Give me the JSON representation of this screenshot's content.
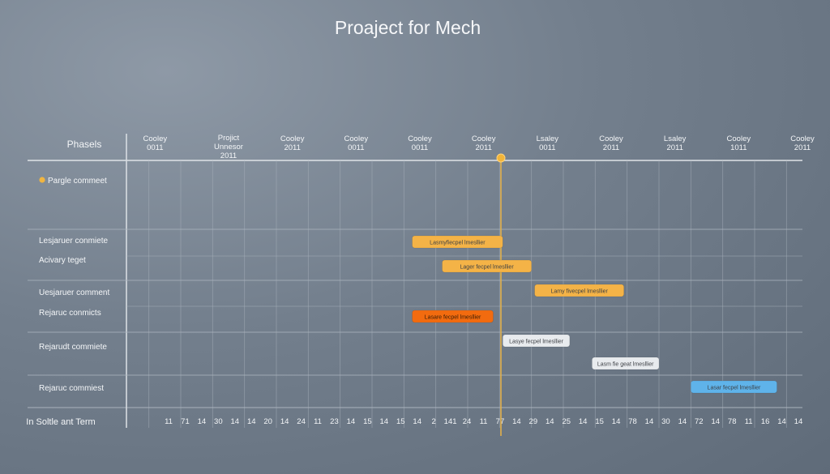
{
  "chart_data": {
    "type": "gantt",
    "title": "Proaject for Mech",
    "phase_header": "Phasels",
    "footer_label": "In Soltle ant Term",
    "today_column": 6,
    "column_headers": [
      [
        "Cooley",
        "0011"
      ],
      [
        "Projict",
        "Unnesor",
        "2011"
      ],
      [
        "Cooley",
        "2011"
      ],
      [
        "Cooley",
        "0011"
      ],
      [
        "Cooley",
        "0011"
      ],
      [
        "Cooley",
        "2011"
      ],
      [
        "Lsaley",
        "0011"
      ],
      [
        "Cooley",
        "2011"
      ],
      [
        "Lsaley",
        "2011"
      ],
      [
        "Cooley",
        "1011"
      ],
      [
        "Cooley",
        "2011"
      ]
    ],
    "footer_ticks": [
      "11",
      "71",
      "14",
      "30",
      "14",
      "14",
      "20",
      "14",
      "24",
      "11",
      "23",
      "14",
      "15",
      "14",
      "15",
      "14",
      "2",
      "141",
      "24",
      "11",
      "77",
      "14",
      "29",
      "14",
      "25",
      "14",
      "15",
      "14",
      "78",
      "14",
      "30",
      "14",
      "72",
      "14",
      "78",
      "11",
      "16",
      "14",
      "14"
    ],
    "phases": [
      {
        "name": "Pargle commeet",
        "dot_color": "#f0b541"
      },
      {
        "name": "Lesjaruer conmiete"
      },
      {
        "name": "Acivary teget"
      },
      {
        "name": "Uesjaruer comment"
      },
      {
        "name": "Rejaruc conmicts"
      },
      {
        "name": "Rejarudt commiete"
      },
      {
        "name": "Rejaruc commiest"
      }
    ],
    "tasks": [
      {
        "label": "Lasmyfiecpel lmesllier",
        "start": 4.38,
        "end": 5.8,
        "color": "#f4b347"
      },
      {
        "label": "Lager fecpel lmesllier",
        "start": 4.85,
        "end": 6.25,
        "color": "#f4b347"
      },
      {
        "label": "Lamy fivecpel lmesllier",
        "start": 6.3,
        "end": 7.7,
        "color": "#f4b347"
      },
      {
        "label": "Lasare fecpel lmesllier",
        "start": 4.38,
        "end": 5.65,
        "color": "#f26b0f"
      },
      {
        "label": "Lasye fecpel lmesllier",
        "start": 5.8,
        "end": 6.85,
        "color": "#e8ebee"
      },
      {
        "label": "Lasm fie geat lmesllier",
        "start": 7.2,
        "end": 8.25,
        "color": "#e8ebee"
      },
      {
        "label": "Lasar fecpel lmesllier",
        "start": 8.75,
        "end": 10.1,
        "color": "#5fb3ea"
      }
    ],
    "colors": {
      "grid": "#aab3bd",
      "today_line": "#e2b04a",
      "today_dot": "#f2b53a",
      "text": "#f4f6f8"
    }
  }
}
